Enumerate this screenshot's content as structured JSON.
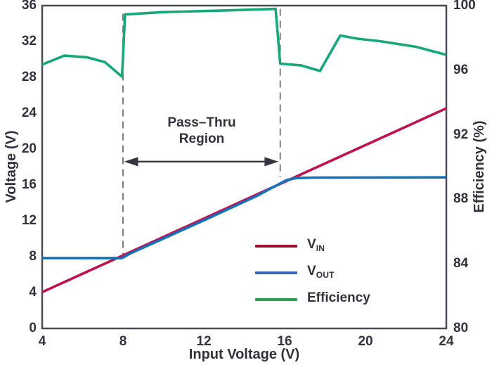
{
  "chart_data": {
    "type": "line",
    "title": "",
    "xlabel": "Input Voltage (V)",
    "ylabel_left": "Voltage (V)",
    "ylabel_right": "Efficiency (%)",
    "xlim": [
      4,
      24
    ],
    "ylim_left": [
      0,
      36
    ],
    "ylim_right": [
      80,
      100
    ],
    "x_ticks": [
      4,
      8,
      12,
      16,
      20,
      24
    ],
    "y_left_ticks": [
      0,
      4,
      8,
      12,
      16,
      20,
      24,
      28,
      32,
      36
    ],
    "y_right_ticks": [
      80,
      84,
      88,
      92,
      96,
      100
    ],
    "grid": false,
    "legend_position": "inside-lower-right",
    "series": [
      {
        "name": "VIN",
        "axis": "left",
        "color": "#C11050",
        "points": [
          [
            4,
            4.05
          ],
          [
            24,
            24.55
          ]
        ]
      },
      {
        "name": "VOUT",
        "axis": "left",
        "color": "#1173BC",
        "points": [
          [
            4,
            7.85
          ],
          [
            7.95,
            7.85
          ],
          [
            8.35,
            8.35
          ],
          [
            12,
            12.05
          ],
          [
            14.6,
            14.75
          ],
          [
            15.55,
            15.9
          ],
          [
            16.1,
            16.55
          ],
          [
            16.6,
            16.78
          ],
          [
            17.5,
            16.82
          ],
          [
            24,
            16.85
          ]
        ]
      },
      {
        "name": "Efficiency",
        "axis": "right",
        "color": "#16A878",
        "points": [
          [
            4,
            96.35
          ],
          [
            5.1,
            96.9
          ],
          [
            6.2,
            96.8
          ],
          [
            7.1,
            96.5
          ],
          [
            7.95,
            95.6
          ],
          [
            8.1,
            99.45
          ],
          [
            10,
            99.6
          ],
          [
            13,
            99.7
          ],
          [
            15.55,
            99.8
          ],
          [
            15.78,
            96.4
          ],
          [
            16.8,
            96.3
          ],
          [
            17.75,
            95.95
          ],
          [
            18.75,
            98.15
          ],
          [
            19.6,
            97.95
          ],
          [
            20.7,
            97.8
          ],
          [
            22.5,
            97.45
          ],
          [
            24,
            96.95
          ]
        ]
      }
    ],
    "dashed_guides": [
      {
        "x": 8,
        "top_eff": 99.5,
        "bottom_v": 7.9
      },
      {
        "x": 15.78,
        "top_eff": 99.8,
        "bottom_v": 16.85
      }
    ],
    "annotation": {
      "line1": "Pass–Thru",
      "line2": "Region",
      "arrow_y_voltage": 18.6,
      "arrow_x_start": 8.05,
      "arrow_x_end": 15.7
    },
    "legend": {
      "items": [
        {
          "main": "V",
          "sub": "IN",
          "color": "#9E1230"
        },
        {
          "main": "V",
          "sub": "OUT",
          "color": "#3A67B5"
        },
        {
          "main": "Efficiency",
          "sub": "",
          "color": "#2E9E50"
        }
      ]
    },
    "colors": {
      "text": "#32323C",
      "border": "#4A4A54",
      "dashed": "#6F6F77",
      "arrow": "#35353F",
      "background": "#FFFFFF"
    }
  }
}
